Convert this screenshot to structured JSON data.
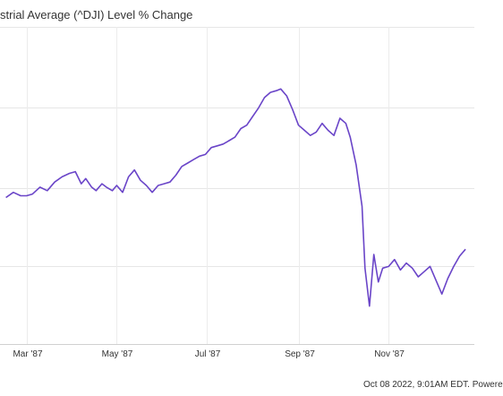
{
  "chart_data": {
    "type": "line",
    "title": "strial Average (^DJI) Level % Change",
    "xlabel": "",
    "ylabel": "",
    "x_ticks": [
      "Mar '87",
      "May '87",
      "Jul '87",
      "Sep '87",
      "Nov '87"
    ],
    "grid": true,
    "footer": "Oct 08 2022, 9:01AM EDT. Powere",
    "series": [
      {
        "name": "",
        "color": "#6a45c8",
        "x": [
          "1987-02-15",
          "1987-02-20",
          "1987-02-25",
          "1987-03-01",
          "1987-03-05",
          "1987-03-10",
          "1987-03-15",
          "1987-03-20",
          "1987-03-25",
          "1987-03-30",
          "1987-04-03",
          "1987-04-07",
          "1987-04-10",
          "1987-04-14",
          "1987-04-17",
          "1987-04-21",
          "1987-04-24",
          "1987-04-28",
          "1987-05-01",
          "1987-05-05",
          "1987-05-09",
          "1987-05-13",
          "1987-05-17",
          "1987-05-21",
          "1987-05-25",
          "1987-05-29",
          "1987-06-02",
          "1987-06-06",
          "1987-06-10",
          "1987-06-14",
          "1987-06-18",
          "1987-06-22",
          "1987-06-26",
          "1987-06-30",
          "1987-07-04",
          "1987-07-08",
          "1987-07-12",
          "1987-07-16",
          "1987-07-20",
          "1987-07-24",
          "1987-07-28",
          "1987-08-01",
          "1987-08-05",
          "1987-08-09",
          "1987-08-13",
          "1987-08-17",
          "1987-08-20",
          "1987-08-24",
          "1987-08-28",
          "1987-09-01",
          "1987-09-05",
          "1987-09-09",
          "1987-09-13",
          "1987-09-17",
          "1987-09-21",
          "1987-09-25",
          "1987-09-29",
          "1987-10-03",
          "1987-10-06",
          "1987-10-10",
          "1987-10-14",
          "1987-10-16",
          "1987-10-19",
          "1987-10-22",
          "1987-10-25",
          "1987-10-28",
          "1987-11-01",
          "1987-11-05",
          "1987-11-09",
          "1987-11-13",
          "1987-11-17",
          "1987-11-21",
          "1987-11-25",
          "1987-11-29",
          "1987-12-03",
          "1987-12-07",
          "1987-12-11",
          "1987-12-15",
          "1987-12-19",
          "1987-12-23"
        ],
        "values": [
          4.5,
          6.0,
          5.0,
          5.0,
          5.5,
          7.5,
          6.5,
          9.0,
          10.5,
          11.5,
          12.0,
          8.5,
          10.0,
          7.5,
          6.5,
          8.5,
          7.5,
          6.5,
          8.0,
          6.0,
          10.5,
          12.5,
          9.5,
          8.0,
          6.0,
          8.0,
          8.5,
          9.0,
          11.0,
          13.5,
          14.5,
          15.5,
          16.5,
          17.0,
          19.0,
          19.5,
          20.0,
          21.0,
          22.0,
          24.5,
          25.5,
          28.0,
          30.5,
          33.5,
          35.0,
          35.5,
          36.0,
          34.0,
          30.0,
          25.5,
          24.0,
          22.5,
          23.5,
          26.0,
          24.0,
          22.5,
          27.5,
          26.0,
          22.0,
          14.0,
          2.0,
          -16.0,
          -27.0,
          -12.0,
          -20.0,
          -16.0,
          -15.5,
          -13.5,
          -16.5,
          -14.5,
          -16.0,
          -18.5,
          -17.0,
          -15.5,
          -19.5,
          -23.5,
          -19.0,
          -15.5,
          -12.5,
          -10.5
        ]
      }
    ],
    "ylim": [
      -38,
      54
    ]
  }
}
